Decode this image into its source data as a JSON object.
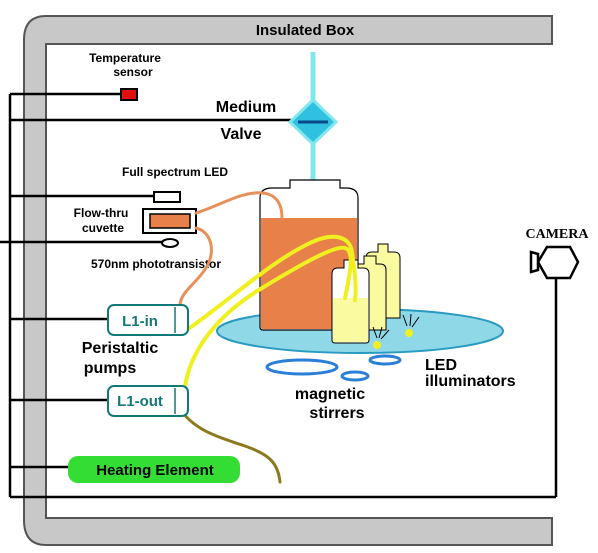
{
  "box": {
    "title": "Insulated Box"
  },
  "labels": {
    "temperature_sensor": [
      "Temperature",
      "sensor"
    ],
    "medium": "Medium",
    "valve": "Valve",
    "full_spectrum_led": "Full spectrum LED",
    "flow_thru_cuvette": [
      "Flow-thru",
      "cuvette"
    ],
    "phototransistor": "570nm phototransistor",
    "camera": "CAMERA",
    "pump_in": "L1-in",
    "pump_out": "L1-out",
    "peristaltic_pumps": [
      "Peristaltic",
      "pumps"
    ],
    "magnetic_stirrers": [
      "magnetic",
      "stirrers"
    ],
    "led_illuminators": [
      "LED",
      "illuminators"
    ],
    "heating_element": "Heating Element"
  },
  "colors": {
    "box_wall": "#c8c8c8",
    "medium_fill": "#e8804a",
    "culture_fill": "#fafaa0",
    "platform": "#8fd8e8",
    "valve": "#30c0e0",
    "yellow_tube": "#f0f020",
    "orange_tube": "#e8905a",
    "olive_tube": "#8c7a1e",
    "heater": "#33dd33",
    "stirrer": "#2a7fd8",
    "pump_text": "#127878",
    "sensor_red": "#e01010"
  }
}
